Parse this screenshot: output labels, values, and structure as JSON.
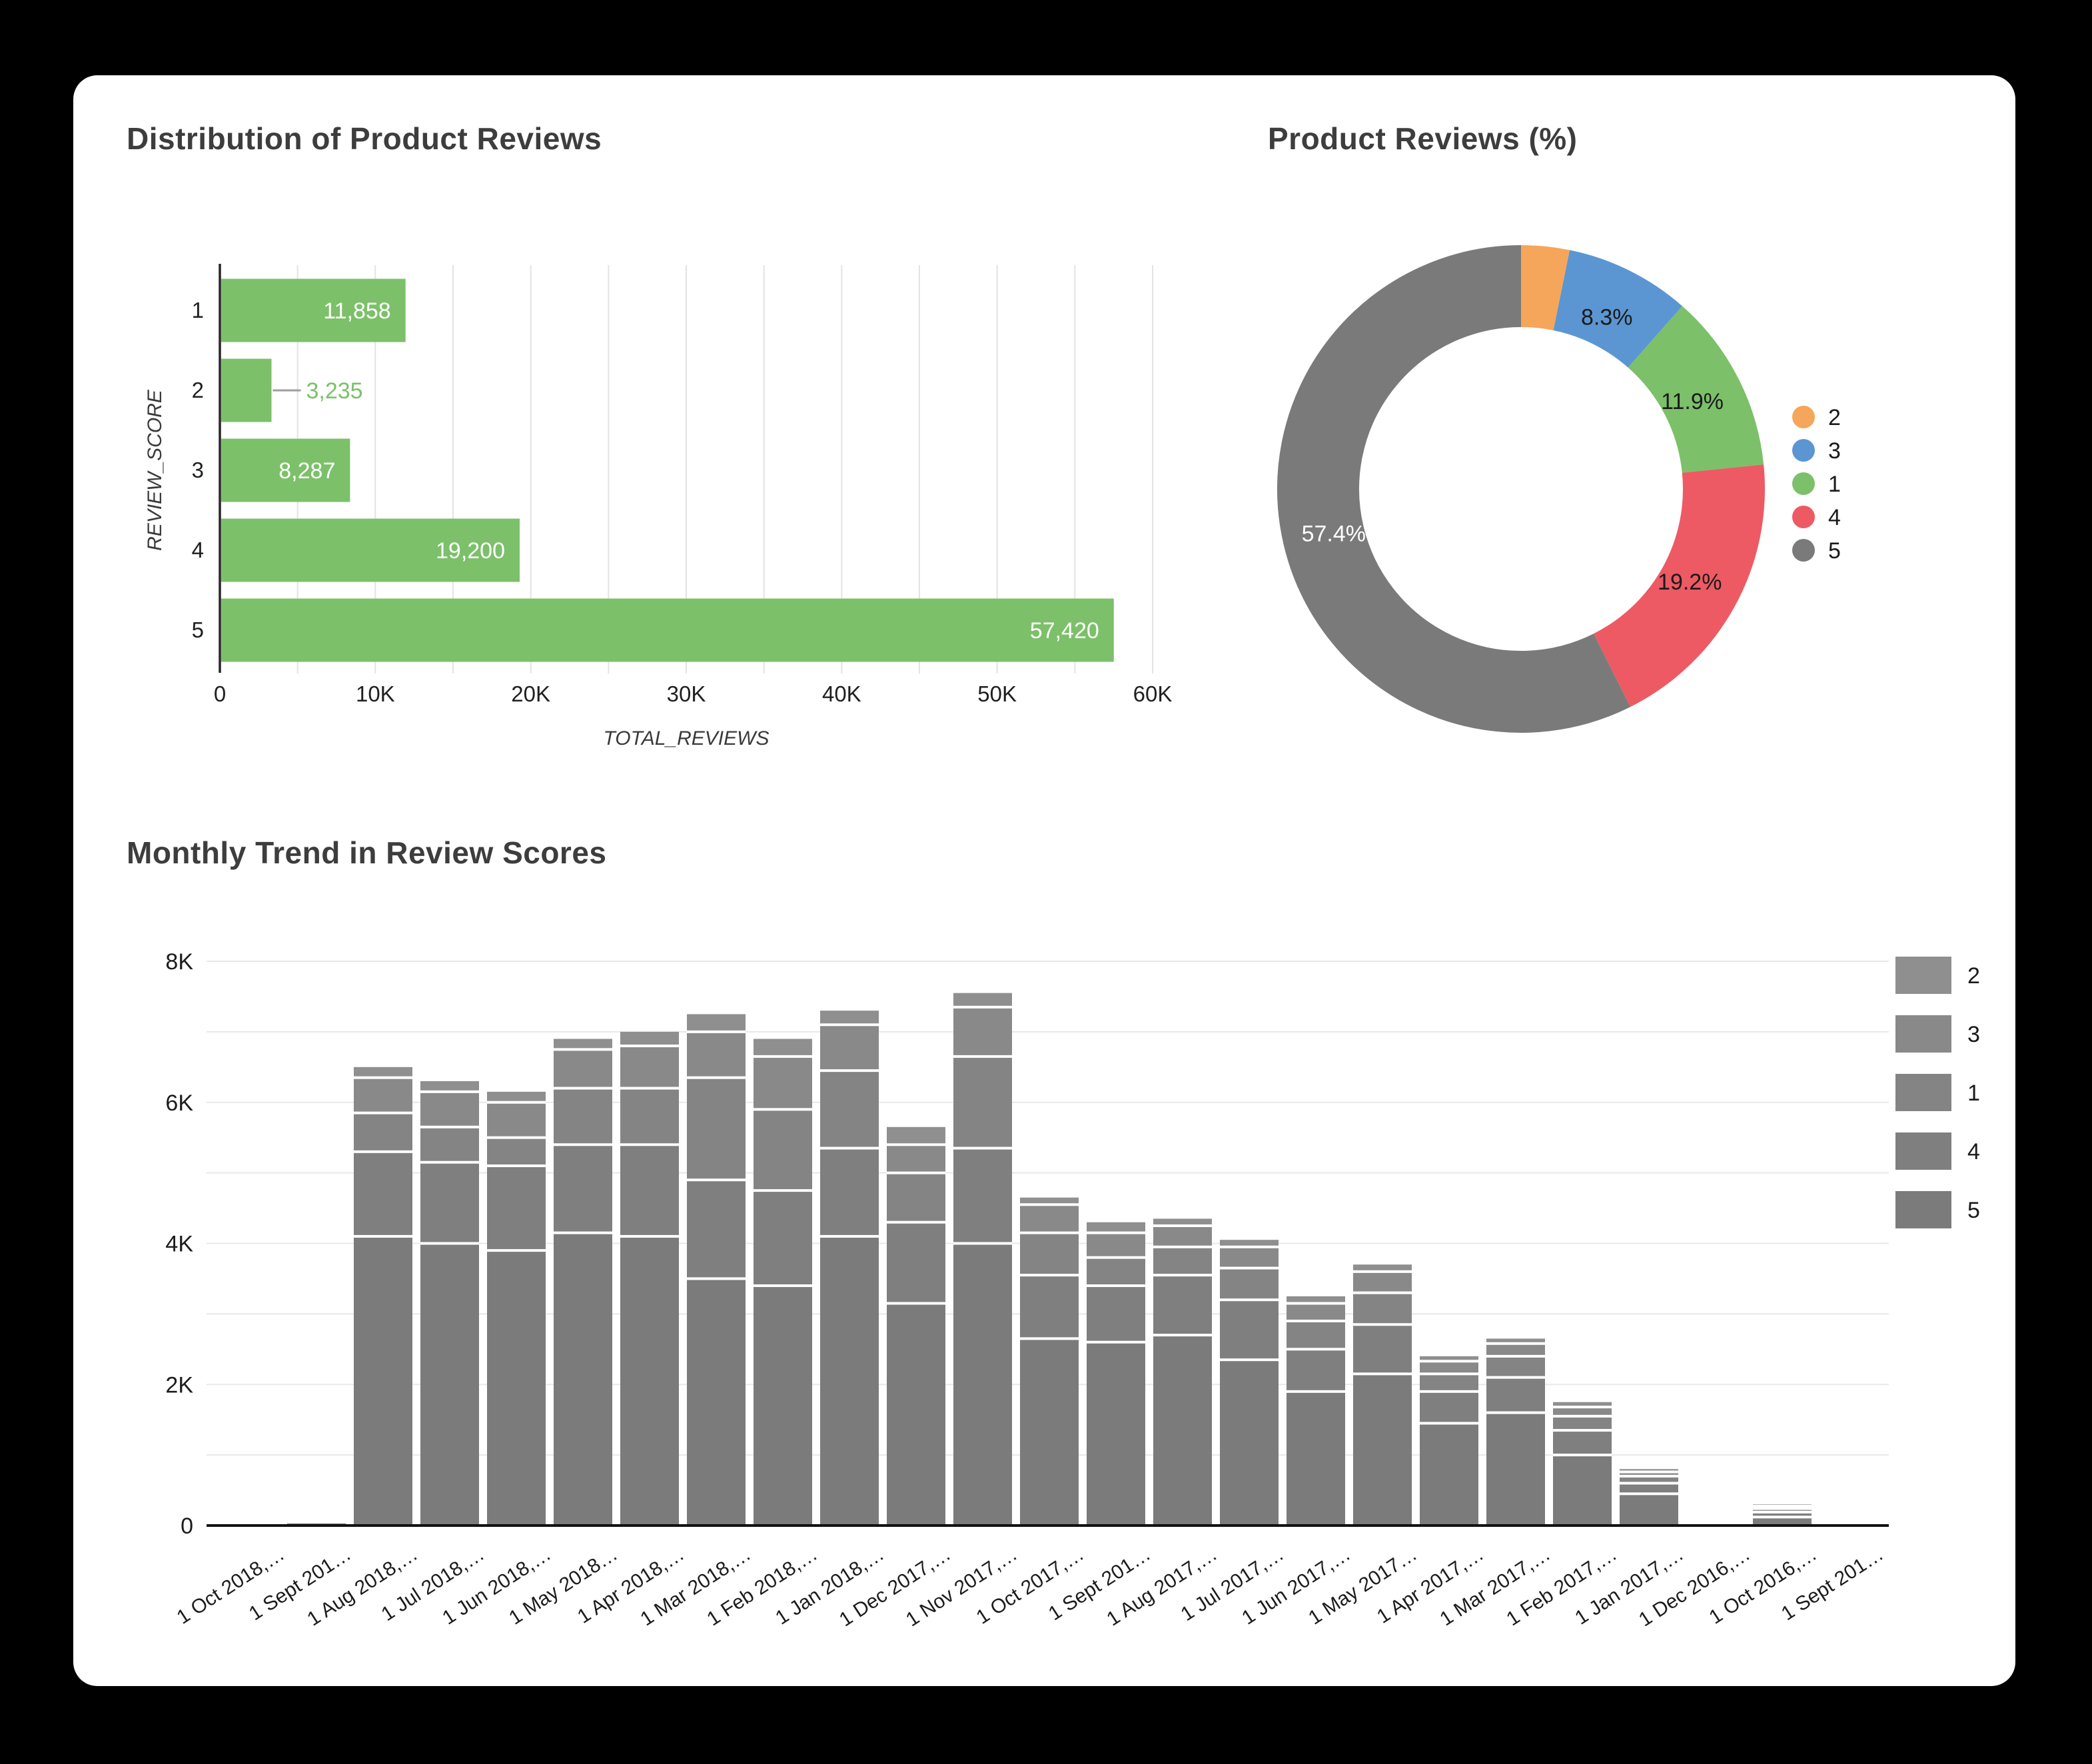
{
  "window": {
    "background": "#000000",
    "card_background": "#ffffff",
    "title_color": "#3d3d3d"
  },
  "chart_data": [
    {
      "id": "distribution",
      "type": "bar",
      "orientation": "horizontal",
      "title": "Distribution of Product Reviews",
      "xlabel": "TOTAL_REVIEWS",
      "ylabel": "REVIEW_SCORE",
      "categories": [
        "1",
        "2",
        "3",
        "4",
        "5"
      ],
      "values": [
        11858,
        3235,
        8287,
        19200,
        57420
      ],
      "value_labels": [
        "11,858",
        "3,235",
        "8,287",
        "19,200",
        "57,420"
      ],
      "xlim": [
        0,
        60000
      ],
      "x_ticks": [
        {
          "v": 0,
          "label": "0"
        },
        {
          "v": 10000,
          "label": "10K"
        },
        {
          "v": 20000,
          "label": "20K"
        },
        {
          "v": 30000,
          "label": "30K"
        },
        {
          "v": 40000,
          "label": "40K"
        },
        {
          "v": 50000,
          "label": "50K"
        },
        {
          "v": 60000,
          "label": "60K"
        }
      ],
      "grid_step": 5000,
      "bar_color": "#7cc06a",
      "inside_label_color": "#ffffff",
      "outside_label_color": "#7cc06a",
      "connector_color": "#9e9e9e",
      "grid_color": "#e3e3e3",
      "axis_color": "#262626",
      "tick_color": "#1f1f1f",
      "axis_title_color": "#3a3a3a"
    },
    {
      "id": "reviews_pct",
      "type": "pie",
      "donut": true,
      "title": "Product Reviews (%)",
      "legend_position": "right",
      "slices": [
        {
          "label": "2",
          "value": 3.2,
          "color": "#f5a65a",
          "pct_label": "",
          "label_color": "#1a1a1a"
        },
        {
          "label": "3",
          "value": 8.3,
          "color": "#5b96d2",
          "pct_label": "8.3%",
          "label_color": "#1a1a1a"
        },
        {
          "label": "1",
          "value": 11.9,
          "color": "#7cc06a",
          "pct_label": "11.9%",
          "label_color": "#1a1a1a"
        },
        {
          "label": "4",
          "value": 19.2,
          "color": "#ed5a64",
          "pct_label": "19.2%",
          "label_color": "#1a1a1a"
        },
        {
          "label": "5",
          "value": 57.4,
          "color": "#7a7a7a",
          "pct_label": "57.4%",
          "label_color": "#ffffff"
        }
      ]
    },
    {
      "id": "monthly_trend",
      "type": "bar",
      "stacked": true,
      "title": "Monthly Trend in Review Scores",
      "categories": [
        "1 Oct 2018,…",
        "1 Sept 201…",
        "1 Aug 2018,…",
        "1 Jul 2018,…",
        "1 Jun 2018,…",
        "1 May 2018…",
        "1 Apr 2018,…",
        "1 Mar 2018,…",
        "1 Feb 2018,…",
        "1 Jan 2018,…",
        "1 Dec 2017,…",
        "1 Nov 2017,…",
        "1 Oct 2017,…",
        "1 Sept 201…",
        "1 Aug 2017,…",
        "1 Jul 2017,…",
        "1 Jun 2017,…",
        "1 May 2017…",
        "1 Apr 2017,…",
        "1 Mar 2017,…",
        "1 Feb 2017,…",
        "1 Jan 2017,…",
        "1 Dec 2016,…",
        "1 Oct 2016,…",
        "1 Sept 201…"
      ],
      "series": [
        {
          "name": "5",
          "color": "#7b7b7b",
          "values": [
            0,
            30,
            4100,
            4000,
            3900,
            4150,
            4100,
            3500,
            3400,
            4100,
            3150,
            4000,
            2650,
            2600,
            2700,
            2350,
            1900,
            2150,
            1450,
            1600,
            1000,
            450,
            0,
            120,
            0
          ]
        },
        {
          "name": "4",
          "color": "#7f7f7f",
          "values": [
            0,
            0,
            1200,
            1150,
            1200,
            1250,
            1300,
            1400,
            1350,
            1250,
            1150,
            1350,
            900,
            800,
            850,
            850,
            600,
            700,
            450,
            500,
            350,
            150,
            0,
            70,
            0
          ]
        },
        {
          "name": "1",
          "color": "#848484",
          "values": [
            0,
            0,
            550,
            500,
            400,
            800,
            800,
            1450,
            1150,
            1100,
            700,
            1300,
            600,
            400,
            400,
            450,
            400,
            450,
            250,
            300,
            200,
            100,
            0,
            50,
            0
          ]
        },
        {
          "name": "3",
          "color": "#898989",
          "values": [
            0,
            0,
            500,
            500,
            500,
            550,
            600,
            650,
            750,
            650,
            400,
            700,
            400,
            350,
            300,
            300,
            250,
            300,
            180,
            180,
            130,
            60,
            0,
            35,
            0
          ]
        },
        {
          "name": "2",
          "color": "#8f8f8f",
          "values": [
            0,
            0,
            150,
            150,
            150,
            150,
            200,
            250,
            250,
            200,
            250,
            200,
            100,
            150,
            100,
            100,
            100,
            100,
            70,
            70,
            70,
            40,
            0,
            25,
            0
          ]
        }
      ],
      "legend": [
        "2",
        "3",
        "1",
        "4",
        "5"
      ],
      "ylim": [
        0,
        8000
      ],
      "y_ticks": [
        {
          "v": 0,
          "label": "0"
        },
        {
          "v": 2000,
          "label": "2K"
        },
        {
          "v": 4000,
          "label": "4K"
        },
        {
          "v": 6000,
          "label": "6K"
        },
        {
          "v": 8000,
          "label": "8K"
        }
      ],
      "grid_step": 1000,
      "separator_color": "#ffffff",
      "grid_color": "#e8e8e8",
      "axis_color": "#111111",
      "tick_color": "#1c1c1c"
    }
  ]
}
